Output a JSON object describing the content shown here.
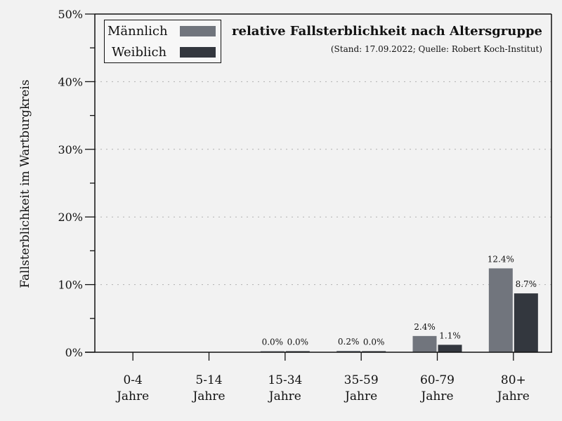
{
  "chart_data": {
    "type": "bar",
    "title": "relative Fallsterblichkeit nach Altersgruppe",
    "subtitle": "(Stand: 17.09.2022; Quelle: Robert Koch-Institut)",
    "xlabel": "",
    "ylabel": "Fallsterblichkeit im Wartburgkreis",
    "ylim": [
      0,
      50
    ],
    "yticks": [
      "0%",
      "10%",
      "20%",
      "30%",
      "40%",
      "50%"
    ],
    "grid": "horizontal dotted at major ticks",
    "legend_position": "upper left",
    "categories": [
      "0-4 Jahre",
      "5-14 Jahre",
      "15-34 Jahre",
      "35-59 Jahre",
      "60-79 Jahre",
      "80+ Jahre"
    ],
    "category_lines": [
      [
        "0-4",
        "Jahre"
      ],
      [
        "5-14",
        "Jahre"
      ],
      [
        "15-34",
        "Jahre"
      ],
      [
        "35-59",
        "Jahre"
      ],
      [
        "60-79",
        "Jahre"
      ],
      [
        "80+",
        "Jahre"
      ]
    ],
    "series": [
      {
        "name": "Männlich",
        "color": "#71757d",
        "values": [
          null,
          null,
          0.0,
          0.2,
          2.4,
          12.4
        ],
        "labels": [
          "",
          "",
          "0.0%",
          "0.2%",
          "2.4%",
          "12.4%"
        ]
      },
      {
        "name": "Weiblich",
        "color": "#33373e",
        "values": [
          null,
          null,
          0.0,
          0.0,
          1.1,
          8.7
        ],
        "labels": [
          "",
          "",
          "0.0%",
          "0.0%",
          "1.1%",
          "8.7%"
        ]
      }
    ]
  },
  "legend": {
    "male": "Männlich",
    "female": "Weiblich"
  },
  "colors": {
    "background": "#f2f2f2",
    "male": "#71757d",
    "female": "#33373e",
    "axis": "#111111",
    "grid": "#b0b0b0"
  }
}
